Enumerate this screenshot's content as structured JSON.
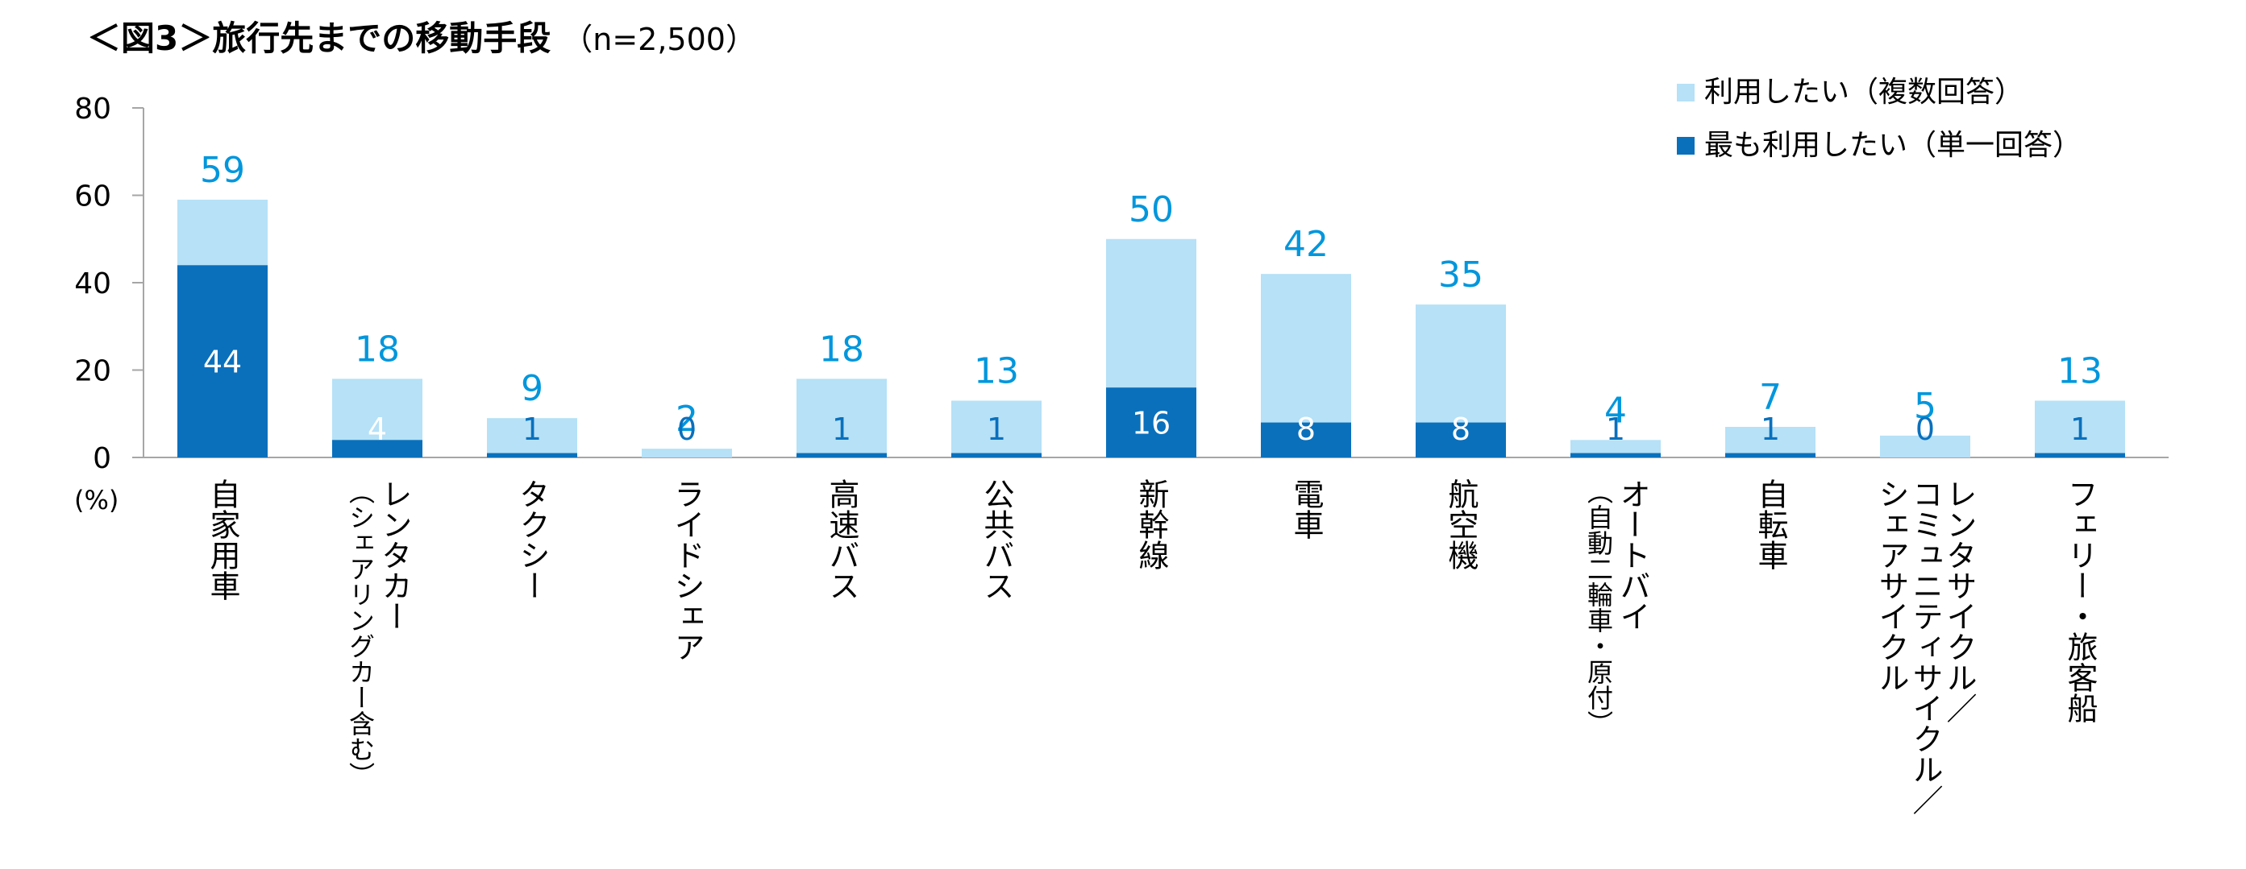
{
  "title": "＜図3＞旅行先までの移動手段",
  "sample_size": "（n=2,500）",
  "unit_label": "(%)",
  "colors": {
    "multi": "#b6e1f7",
    "single": "#0a70bc",
    "label_multi": "#0096dc"
  },
  "chart_data": {
    "type": "bar",
    "stacking": "overlay",
    "ylim": [
      0,
      80
    ],
    "yticks": [
      0,
      20,
      40,
      60,
      80
    ],
    "legend_position": "top-right",
    "grid": false,
    "categories": [
      {
        "lines": [
          "自家用車"
        ]
      },
      {
        "lines": [
          "レンタカー",
          "（シェアリングカー含む）"
        ]
      },
      {
        "lines": [
          "タクシー"
        ]
      },
      {
        "lines": [
          "ライドシェア"
        ]
      },
      {
        "lines": [
          "高速バス"
        ]
      },
      {
        "lines": [
          "公共バス"
        ]
      },
      {
        "lines": [
          "新幹線"
        ]
      },
      {
        "lines": [
          "電車"
        ]
      },
      {
        "lines": [
          "航空機"
        ]
      },
      {
        "lines": [
          "オートバイ",
          "（自動二輪車・原付）"
        ]
      },
      {
        "lines": [
          "自転車"
        ]
      },
      {
        "lines": [
          "レンタサイクル／",
          "コミュニティサイクル／",
          "シェアサイクル"
        ]
      },
      {
        "lines": [
          "フェリー・旅客船"
        ]
      }
    ],
    "series": [
      {
        "name": "利用したい（複数回答）",
        "values": [
          59,
          18,
          9,
          2,
          18,
          13,
          50,
          42,
          35,
          4,
          7,
          5,
          13
        ]
      },
      {
        "name": "最も利用したい（単一回答）",
        "values": [
          44,
          4,
          1,
          0,
          1,
          1,
          16,
          8,
          8,
          1,
          1,
          0,
          1
        ]
      }
    ]
  }
}
